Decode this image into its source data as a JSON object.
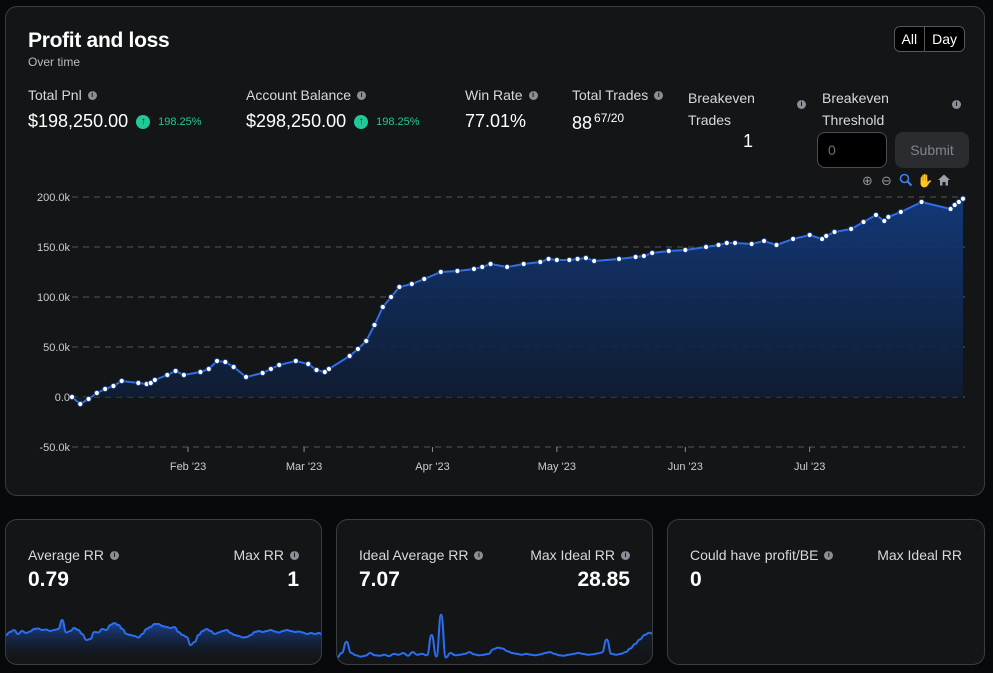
{
  "main": {
    "title": "Profit and loss",
    "subtitle": "Over time",
    "toggle": [
      "All",
      "Day"
    ]
  },
  "stats": {
    "total_pnl": {
      "label": "Total Pnl",
      "value": "$198,250.00",
      "change": "198.25%"
    },
    "account_balance": {
      "label": "Account Balance",
      "value": "$298,250.00",
      "change": "198.25%"
    },
    "win_rate": {
      "label": "Win Rate",
      "value": "77.01%"
    },
    "total_trades": {
      "label": "Total Trades",
      "value": "88",
      "ratio": "67/20"
    },
    "breakeven_trades": {
      "line1": "Breakeven",
      "line2": "Trades",
      "value": "1"
    },
    "breakeven_threshold": {
      "line1": "Breakeven",
      "line2": "Threshold",
      "placeholder": "0",
      "submit": "Submit"
    }
  },
  "toolbar": {
    "icons": [
      "zoom-in-icon",
      "zoom-out-icon",
      "zoom-select-icon",
      "pan-icon",
      "home-icon"
    ]
  },
  "chart_data": {
    "type": "area",
    "x_ticks": [
      "Feb '23",
      "Mar '23",
      "Apr '23",
      "May '23",
      "Jun '23",
      "Jul '23"
    ],
    "y_ticks": [
      "200.0k",
      "150.0k",
      "100.0k",
      "50.0k",
      "0.0",
      "-50.0k"
    ],
    "ylim": [
      -50000,
      200000
    ],
    "grid": true,
    "line_color": "#2f6fe8",
    "fill_color": "#0e2a5a",
    "x": [
      "2023-01-04",
      "2023-01-06",
      "2023-01-08",
      "2023-01-10",
      "2023-01-12",
      "2023-01-14",
      "2023-01-16",
      "2023-01-20",
      "2023-01-22",
      "2023-01-23",
      "2023-01-24",
      "2023-01-27",
      "2023-01-29",
      "2023-01-31",
      "2023-02-04",
      "2023-02-06",
      "2023-02-08",
      "2023-02-10",
      "2023-02-12",
      "2023-02-15",
      "2023-02-19",
      "2023-02-21",
      "2023-02-23",
      "2023-02-27",
      "2023-03-02",
      "2023-03-04",
      "2023-03-06",
      "2023-03-07",
      "2023-03-12",
      "2023-03-14",
      "2023-03-16",
      "2023-03-18",
      "2023-03-20",
      "2023-03-22",
      "2023-03-24",
      "2023-03-27",
      "2023-03-30",
      "2023-04-03",
      "2023-04-07",
      "2023-04-11",
      "2023-04-13",
      "2023-04-15",
      "2023-04-19",
      "2023-04-23",
      "2023-04-27",
      "2023-04-29",
      "2023-05-01",
      "2023-05-04",
      "2023-05-06",
      "2023-05-08",
      "2023-05-10",
      "2023-05-16",
      "2023-05-20",
      "2023-05-22",
      "2023-05-24",
      "2023-05-28",
      "2023-06-01",
      "2023-06-06",
      "2023-06-09",
      "2023-06-11",
      "2023-06-13",
      "2023-06-17",
      "2023-06-20",
      "2023-06-23",
      "2023-06-27",
      "2023-07-01",
      "2023-07-04",
      "2023-07-05",
      "2023-07-07",
      "2023-07-11",
      "2023-07-14",
      "2023-07-17",
      "2023-07-19",
      "2023-07-20",
      "2023-07-23",
      "2023-07-28",
      "2023-08-04",
      "2023-08-05",
      "2023-08-06",
      "2023-08-07"
    ],
    "y": [
      0,
      -7000,
      -2000,
      4000,
      8000,
      11000,
      16000,
      14000,
      13000,
      14000,
      17000,
      22000,
      26000,
      22000,
      25000,
      28000,
      36000,
      35000,
      30000,
      20000,
      24000,
      28000,
      32000,
      36000,
      33000,
      27000,
      25000,
      28000,
      41000,
      48000,
      56000,
      72000,
      90000,
      100000,
      110000,
      113000,
      118000,
      125000,
      126000,
      128000,
      130000,
      133000,
      130000,
      133000,
      135000,
      138000,
      137000,
      137000,
      138000,
      139000,
      136000,
      138000,
      140000,
      141000,
      144000,
      146000,
      147000,
      150000,
      152000,
      154000,
      154000,
      153000,
      156000,
      152000,
      158000,
      162000,
      158000,
      161000,
      165000,
      168000,
      175000,
      182000,
      176000,
      180000,
      185000,
      195000,
      188000,
      192000,
      195000,
      198250
    ]
  },
  "cards": {
    "rr": {
      "label_left": "Average RR",
      "value_left": "0.79",
      "label_right": "Max RR",
      "value_right": "1"
    },
    "ideal": {
      "label_left": "Ideal Average RR",
      "value_left": "7.07",
      "label_right": "Max Ideal RR",
      "value_right": "28.85"
    },
    "cpbe": {
      "label_left": "Could have profit/BE",
      "value_left": "0",
      "label_right": "Max Ideal RR"
    }
  },
  "sparklines": {
    "rr": [
      0.5,
      0.56,
      0.6,
      0.52,
      0.58,
      0.54,
      0.57,
      0.62,
      0.63,
      0.6,
      0.61,
      0.58,
      0.6,
      0.62,
      0.8,
      0.55,
      0.58,
      0.64,
      0.6,
      0.52,
      0.4,
      0.42,
      0.56,
      0.55,
      0.62,
      0.6,
      0.7,
      0.74,
      0.7,
      0.62,
      0.52,
      0.5,
      0.48,
      0.45,
      0.52,
      0.62,
      0.66,
      0.72,
      0.72,
      0.68,
      0.66,
      0.64,
      0.66,
      0.56,
      0.5,
      0.46,
      0.3,
      0.36,
      0.5,
      0.58,
      0.62,
      0.58,
      0.52,
      0.55,
      0.58,
      0.6,
      0.54,
      0.5,
      0.48,
      0.45,
      0.46,
      0.5,
      0.56,
      0.58,
      0.56,
      0.58,
      0.6,
      0.57,
      0.55,
      0.58,
      0.6,
      0.58,
      0.56,
      0.57,
      0.55,
      0.52,
      0.54,
      0.52,
      0.54,
      0.5
    ],
    "ideal": [
      1.0,
      2.0,
      4.5,
      2.0,
      1.5,
      1.2,
      1.4,
      2.0,
      1.5,
      1.4,
      1.6,
      1.3,
      1.8,
      1.6,
      2.0,
      1.4,
      2.2,
      1.6,
      1.8,
      1.5,
      6.0,
      1.2,
      10.5,
      1.0,
      2.0,
      1.5,
      1.6,
      1.8,
      2.2,
      1.7,
      1.5,
      1.6,
      1.8,
      2.8,
      3.2,
      3.0,
      2.4,
      2.0,
      1.8,
      1.6,
      1.8,
      1.6,
      1.5,
      1.7,
      2.0,
      2.2,
      1.8,
      1.5,
      1.4,
      1.6,
      1.8,
      2.0,
      1.8,
      1.6,
      1.7,
      1.9,
      2.1,
      5.0,
      1.8,
      1.6,
      1.8,
      2.2,
      3.0,
      4.0,
      5.0,
      6.0,
      6.5,
      6.2
    ]
  }
}
